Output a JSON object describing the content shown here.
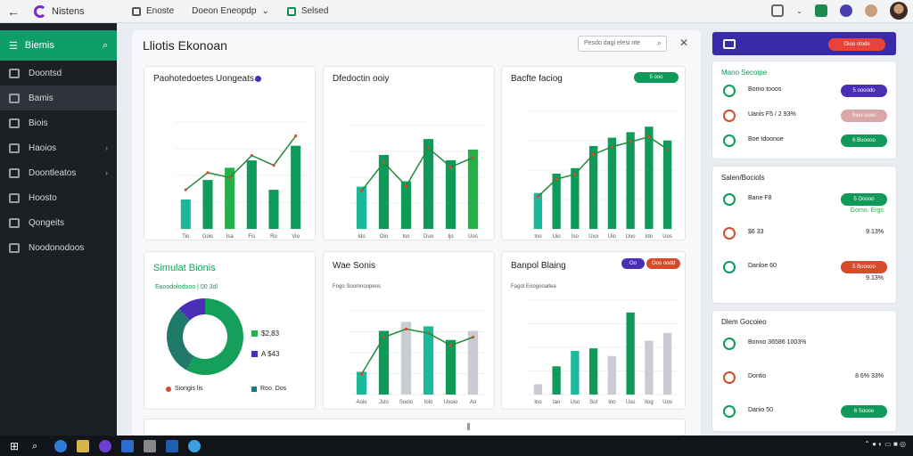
{
  "browser": {
    "app_name": "Nistens",
    "tab1": "Enoste",
    "tab2": "Doeon Eneopdp",
    "tab3": "Selsed"
  },
  "sidebar": {
    "header": "Biemis",
    "items": [
      {
        "label": "Doontsd",
        "chev": false
      },
      {
        "label": "Bamis",
        "chev": false,
        "active": true
      },
      {
        "label": "Biois",
        "chev": false
      },
      {
        "label": "Haoios",
        "chev": true
      },
      {
        "label": "Doontleatos",
        "chev": true
      },
      {
        "label": "Hoosto",
        "chev": false
      },
      {
        "label": "Qongeits",
        "chev": false
      },
      {
        "label": "Noodonodoos",
        "chev": false
      }
    ]
  },
  "main": {
    "title": "Lliotis Ekonoan",
    "search_placeholder": "Pesdo dagi elesi ote",
    "cards": [
      {
        "title": "Paohotedoetes Uongeats"
      },
      {
        "title": "Dfedoctin ooiy"
      },
      {
        "title": "Bacfte faciog",
        "badge": "5 ooo"
      },
      {
        "title": "Simulat Bionis",
        "subtitle": "Eaoodolodooo | 00 3dl",
        "legend": [
          "$2,83",
          "A $43",
          "Siongis lis",
          "Roo. Dos"
        ]
      },
      {
        "title": "Wae Sonis",
        "subtitle": "Fogo Soomnoopeos"
      },
      {
        "title": "Banpol Blaing",
        "subtitle": "Fagot Eoogooaitea",
        "badges": [
          "Oo",
          "Ooo oodd"
        ]
      }
    ]
  },
  "colors": {
    "green": "#0f9a5a",
    "bright_green": "#26b04a",
    "teal": "#1cb89a",
    "red": "#d64b2c",
    "purple": "#4a2fb6",
    "gray_bar": "#c9ccd2"
  },
  "chart_data": [
    {
      "type": "bar",
      "title": "Paohotedoetes Uongeats",
      "categories": [
        "Tio",
        "Gois",
        "Isa",
        "Fis",
        "Ro",
        "Vio"
      ],
      "series": [
        {
          "values": [
            1.2,
            2.0,
            2.5,
            2.8,
            1.6,
            3.4
          ]
        },
        {
          "values": [
            1.6,
            2.3,
            2.1,
            3.0,
            2.6,
            3.8
          ]
        }
      ],
      "ylim": [
        1.0,
        4.6
      ]
    },
    {
      "type": "bar",
      "title": "Dfedoctin ooiy",
      "categories": [
        "Ido",
        "Oio",
        "Iso",
        "Duo",
        "Ijo",
        "Uos"
      ],
      "series": [
        {
          "values": [
            160,
            280,
            180,
            340,
            260,
            300
          ]
        }
      ]
    },
    {
      "type": "bar",
      "title": "Bacfte faciog",
      "categories": [
        "Ino",
        "Uio",
        "Iso",
        "Uxo",
        "Uio",
        "Uuo",
        "Ido",
        "Uos"
      ],
      "series": [
        {
          "values": [
            1.3,
            2.0,
            2.2,
            3.0,
            3.3,
            3.5,
            3.7,
            3.2
          ]
        }
      ]
    },
    {
      "type": "pie",
      "title": "Simulat Bionis",
      "values": [
        58,
        30,
        12
      ]
    },
    {
      "type": "bar",
      "title": "Wae Sonis",
      "categories": [
        "Aoio",
        "Jslo",
        "Sooio",
        "Iolo",
        "Uooio",
        "Ao"
      ],
      "series": [
        {
          "values": [
            100,
            280,
            320,
            300,
            240,
            280
          ]
        }
      ]
    },
    {
      "type": "bar",
      "title": "Banpol Blaing",
      "categories": [
        "Ino",
        "Iao",
        "Uso",
        "Sol",
        "Ino",
        "Uso",
        "Iiog",
        "Uos"
      ],
      "series": [
        {
          "values": [
            80,
            220,
            340,
            360,
            300,
            640,
            420,
            480
          ]
        }
      ]
    }
  ],
  "right_panel": {
    "header_badge": "Oioo otode",
    "sections": [
      {
        "title": "Mano Secoipe",
        "rows": [
          {
            "label": "Bomo tooos",
            "pill": "5 oooodo",
            "pill_color": "#4a2fb6"
          },
          {
            "label": "Uanis F5 / 2 93%",
            "pill": "Sioo oooo",
            "pill_color": "#d9a7a7"
          },
          {
            "label": "Boe tdoonoe",
            "pill": "6 Booooo",
            "pill_color": "#0f9a5a"
          }
        ]
      },
      {
        "title": "Salen/Bociols",
        "rows": [
          {
            "label": "Bane F8",
            "value": "Gomo. Ergs",
            "pill": "5 Ooooo",
            "pill_color": "#0f9a5a"
          },
          {
            "label": "$6 33",
            "value": "9.13%"
          },
          {
            "label": "Danloe 60",
            "value": "9.13%",
            "pill": "5 Booooo",
            "pill_color": "#d64b2c"
          }
        ]
      },
      {
        "title": "Dlem Gocoieo",
        "rows": [
          {
            "label": "Bonno 36586 1003%"
          },
          {
            "label": "Dontio",
            "value": "8 6% 33%"
          },
          {
            "label": "Danio 50",
            "pill": "6 Soooo",
            "pill_color": "#0f9a5a"
          }
        ]
      }
    ]
  }
}
